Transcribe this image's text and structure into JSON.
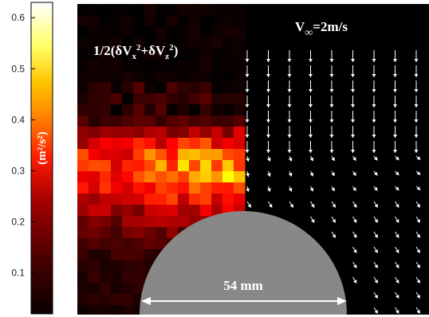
{
  "colorbar": {
    "unit_label": "(m²/s²)",
    "ticks": [
      "0.1",
      "0.2",
      "0.3",
      "0.4",
      "0.5",
      "0.6"
    ],
    "tick_values": [
      0.1,
      0.2,
      0.3,
      0.4,
      0.5,
      0.6
    ],
    "range": [
      0.02,
      0.63
    ],
    "colormap": "hot"
  },
  "chart_data": {
    "type": "heatmap",
    "title": "1/2(δVx²+δVz²)",
    "quantity_label": "1/2(δVx²+δVz²)",
    "freestream_label": "V∞=2m/s",
    "dimension_label": "54 mm",
    "clim": [
      0.02,
      0.63
    ],
    "grid": false,
    "legend": "colorbar-left",
    "turbulent_kinetic_energy_peak": 0.42,
    "freestream_velocity_mps": 2,
    "cylinder_diameter_mm": 54
  },
  "colors": {
    "background": "#000000",
    "cylinder": "#888888",
    "arrows": "#ffffff"
  }
}
